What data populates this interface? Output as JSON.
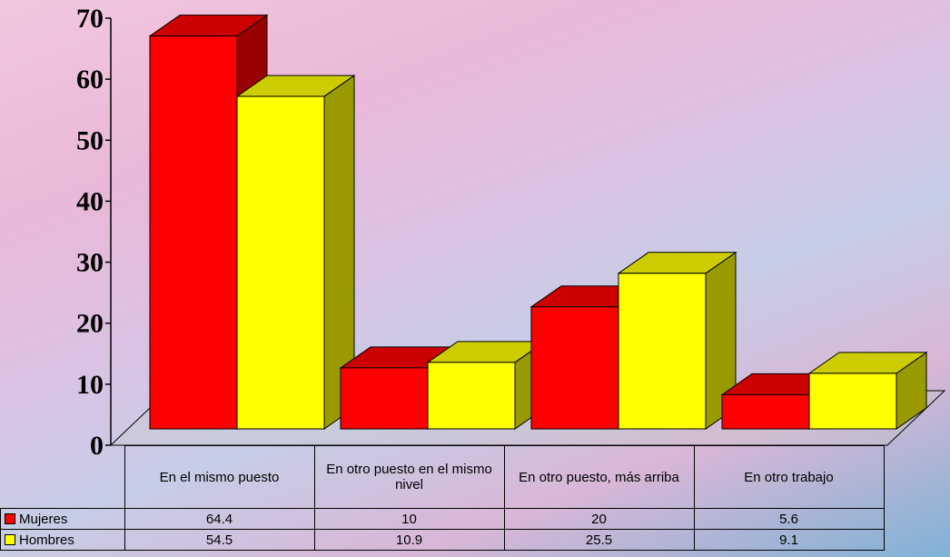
{
  "chart_data": {
    "type": "bar3d",
    "categories": [
      "En el mismo puesto",
      "En otro puesto en el mismo nivel",
      "En otro puesto, más arriba",
      "En otro trabajo"
    ],
    "series": [
      {
        "name": "Mujeres",
        "color": "#ff0000",
        "values": [
          64.4,
          10,
          20,
          5.6
        ]
      },
      {
        "name": "Hombres",
        "color": "#ffff00",
        "values": [
          54.5,
          10.9,
          25.5,
          9.1
        ]
      }
    ],
    "ylim": [
      0,
      70
    ],
    "yticks": [
      0,
      10,
      20,
      30,
      40,
      50,
      60,
      70
    ],
    "data_table": true
  }
}
